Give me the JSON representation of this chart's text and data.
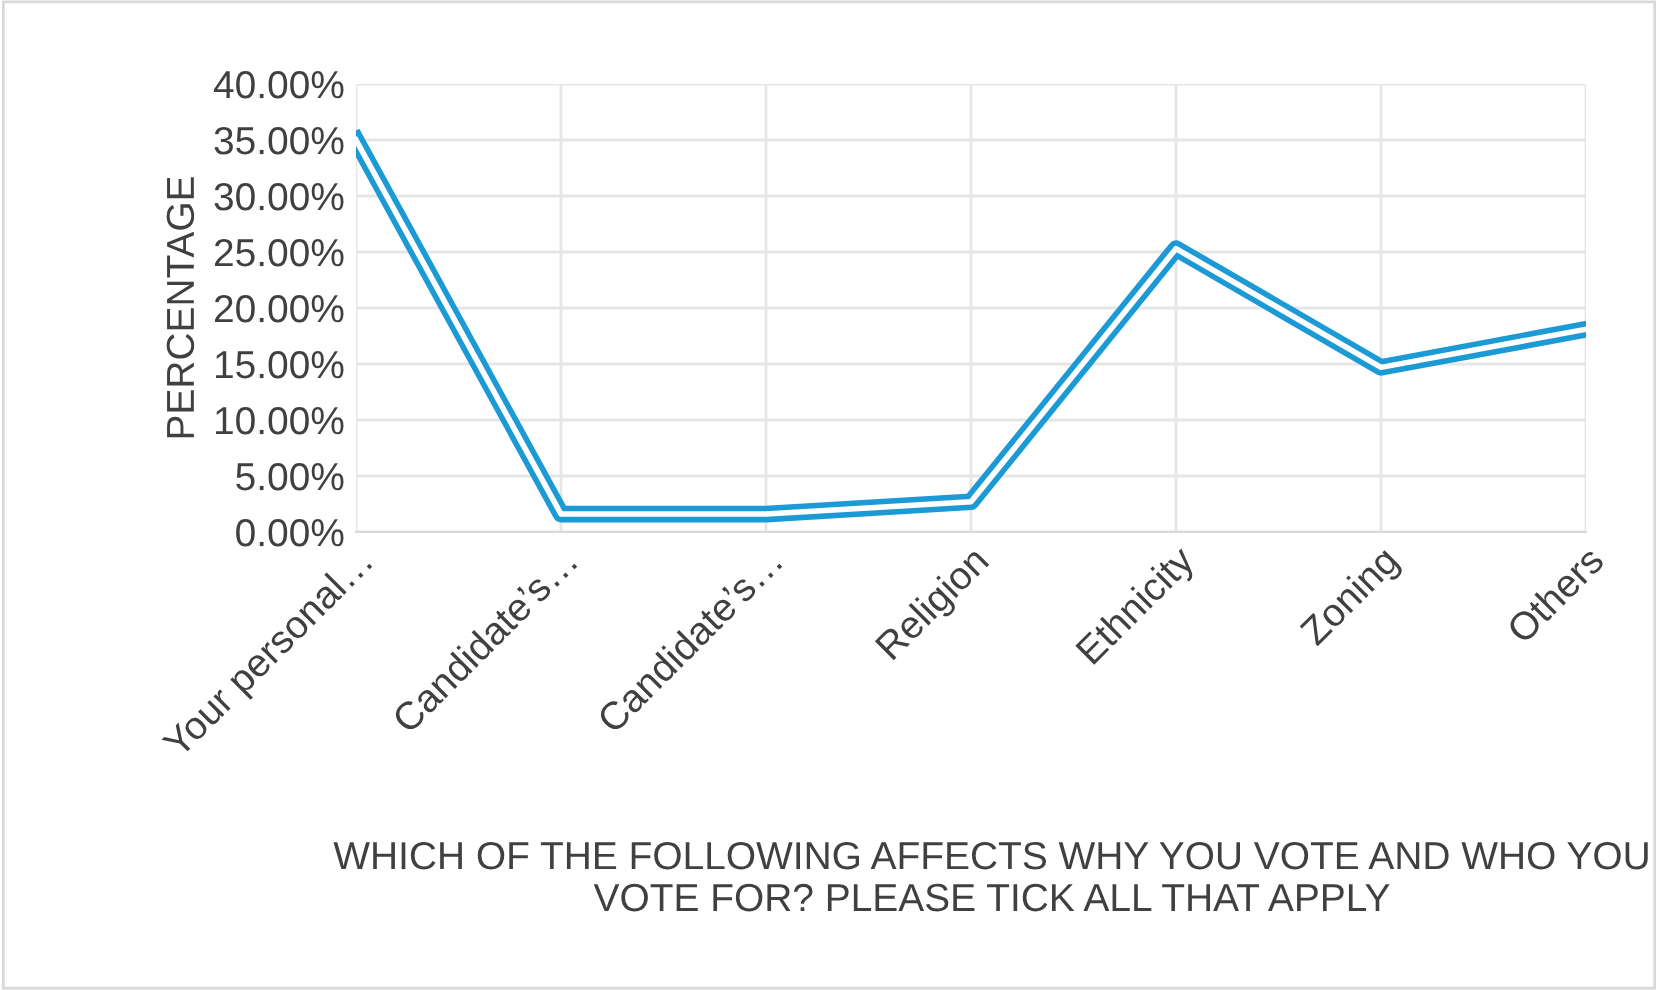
{
  "chart_data": {
    "type": "line",
    "xlabel": "WHICH OF THE FOLLOWING AFFECTS WHY YOU VOTE AND WHO YOU VOTE FOR? PLEASE TICK ALL THAT APPLY",
    "ylabel": "PERCENTAGE",
    "categories": [
      "Your personal…",
      "Candidate’s…",
      "Candidate’s…",
      "Religion",
      "Ethnicity",
      "Zoning",
      "Others"
    ],
    "series": [
      {
        "color": "#1b9ad6",
        "values": [
          35.0,
          1.6,
          1.6,
          2.7,
          25.3,
          14.7,
          18.1
        ]
      }
    ],
    "ylim": [
      0,
      40
    ],
    "yticks": [
      {
        "value": 0,
        "label": "0.00%"
      },
      {
        "value": 5,
        "label": "5.00%"
      },
      {
        "value": 10,
        "label": "10.00%"
      },
      {
        "value": 15,
        "label": "15.00%"
      },
      {
        "value": 20,
        "label": "20.00%"
      },
      {
        "value": 25,
        "label": "25.00%"
      },
      {
        "value": 30,
        "label": "30.00%"
      },
      {
        "value": 35,
        "label": "35.00%"
      },
      {
        "value": 40,
        "label": "40.00%"
      }
    ],
    "grid": true,
    "marker": "none"
  }
}
